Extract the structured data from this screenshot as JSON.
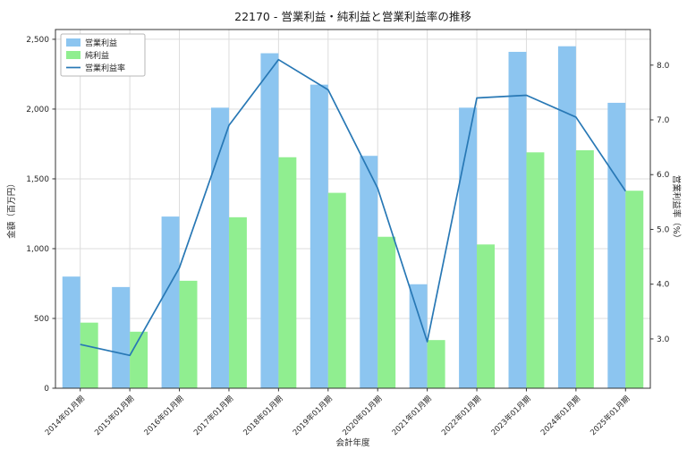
{
  "chart_data": {
    "type": "bar",
    "title": "22170 - 営業利益・純利益と営業利益率の推移",
    "xlabel": "会計年度",
    "ylabel_left": "金額（百万円）",
    "ylabel_right": "営業利益率（%）",
    "categories": [
      "2014年01月期",
      "2015年01月期",
      "2016年01月期",
      "2017年01月期",
      "2018年01月期",
      "2019年01月期",
      "2020年01月期",
      "2021年01月期",
      "2022年01月期",
      "2023年01月期",
      "2024年01月期",
      "2025年01月期"
    ],
    "bar_series": [
      {
        "name": "営業利益",
        "color": "#8cc5f0",
        "axis": "left",
        "values": [
          800,
          725,
          1230,
          2010,
          2400,
          2175,
          1665,
          745,
          2010,
          2410,
          2450,
          2045
        ]
      },
      {
        "name": "純利益",
        "color": "#90ee90",
        "axis": "left",
        "values": [
          470,
          405,
          770,
          1225,
          1655,
          1400,
          1085,
          345,
          1030,
          1690,
          1705,
          1415
        ]
      }
    ],
    "line_series": {
      "name": "営業利益率",
      "color": "#2878b5",
      "axis": "right",
      "values": [
        2.9,
        2.7,
        4.3,
        6.9,
        8.1,
        7.55,
        5.75,
        2.95,
        7.4,
        7.45,
        7.05,
        5.7
      ]
    },
    "ylim_left": [
      0,
      2570
    ],
    "yticks_left": [
      0,
      500,
      1000,
      1500,
      2000,
      2500
    ],
    "ylim_right": [
      2.1,
      8.65
    ],
    "yticks_right": [
      3.0,
      4.0,
      5.0,
      6.0,
      7.0,
      8.0
    ],
    "grid": true,
    "legend_position": "upper left",
    "colors": {
      "grid": "#dcdcdc",
      "axis": "#333333",
      "legend_border": "#b7b7b7",
      "background": "#ffffff"
    }
  }
}
